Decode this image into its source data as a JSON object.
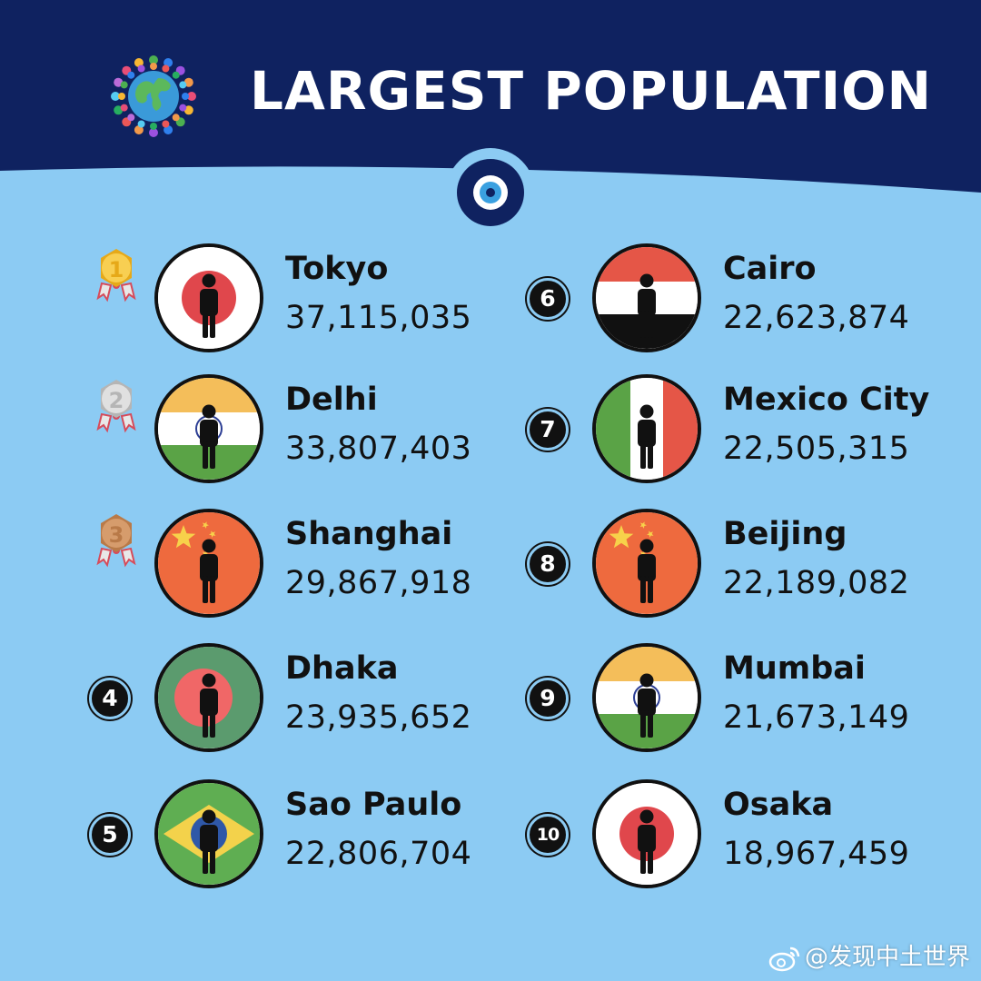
{
  "header": {
    "title": "LARGEST POPULATION",
    "globe_icon": "people-around-globe-icon",
    "eye_icon": "eye-icon",
    "colors": {
      "banner": "#0f2260",
      "background": "#8ccbf3"
    }
  },
  "rankings": [
    {
      "rank": "1",
      "city": "Tokyo",
      "population": "37,115,035",
      "country_flag": "japan",
      "marker": "gold-medal"
    },
    {
      "rank": "2",
      "city": "Delhi",
      "population": "33,807,403",
      "country_flag": "india",
      "marker": "silver-medal"
    },
    {
      "rank": "3",
      "city": "Shanghai",
      "population": "29,867,918",
      "country_flag": "china",
      "marker": "bronze-medal"
    },
    {
      "rank": "4",
      "city": "Dhaka",
      "population": "23,935,652",
      "country_flag": "bangladesh",
      "marker": "number-badge"
    },
    {
      "rank": "5",
      "city": "Sao Paulo",
      "population": "22,806,704",
      "country_flag": "brazil",
      "marker": "number-badge"
    },
    {
      "rank": "6",
      "city": "Cairo",
      "population": "22,623,874",
      "country_flag": "egypt",
      "marker": "number-badge"
    },
    {
      "rank": "7",
      "city": "Mexico City",
      "population": "22,505,315",
      "country_flag": "mexico",
      "marker": "number-badge"
    },
    {
      "rank": "8",
      "city": "Beijing",
      "population": "22,189,082",
      "country_flag": "china",
      "marker": "number-badge"
    },
    {
      "rank": "9",
      "city": "Mumbai",
      "population": "21,673,149",
      "country_flag": "india",
      "marker": "number-badge"
    },
    {
      "rank": "10",
      "city": "Osaka",
      "population": "18,967,459",
      "country_flag": "japan",
      "marker": "number-badge"
    }
  ],
  "watermark": {
    "text": "@发现中土世界",
    "icon": "weibo-icon"
  }
}
